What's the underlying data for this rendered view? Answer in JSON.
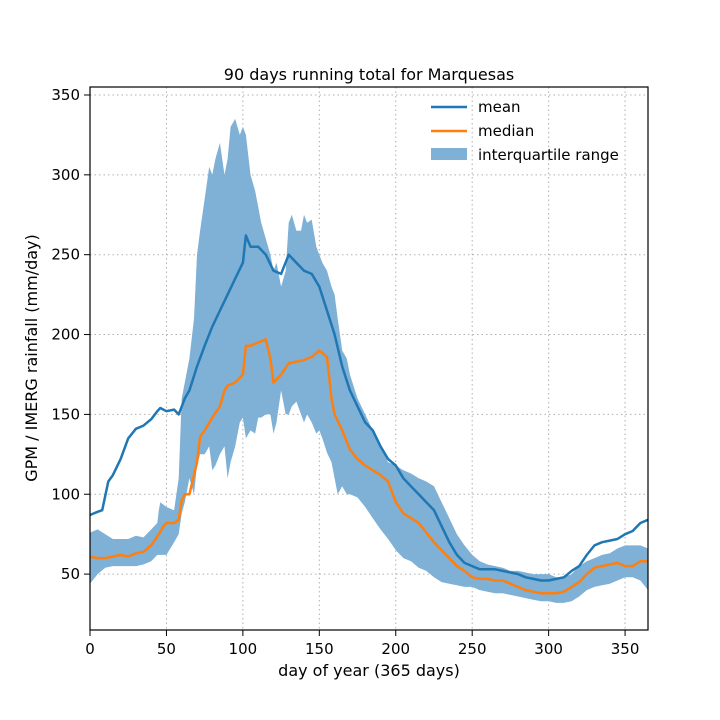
{
  "chart_data": {
    "type": "line",
    "title": "90 days running total for Marquesas",
    "xlabel": "day of year (365 days)",
    "ylabel": "GPM / IMERG rainfall (mm/day)",
    "xlim": [
      0,
      365
    ],
    "ylim": [
      15,
      355
    ],
    "xticks": [
      0,
      50,
      100,
      150,
      200,
      250,
      300,
      350
    ],
    "yticks": [
      50,
      100,
      150,
      200,
      250,
      300,
      350
    ],
    "grid": true,
    "legend_position": "top-right",
    "legend": [
      "mean",
      "median",
      "interquartile range"
    ],
    "colors": {
      "mean": "#1f77b4",
      "median": "#ff7f0e",
      "iqr": "#7fb0d6"
    },
    "series": [
      {
        "name": "mean",
        "x": [
          0,
          5,
          8,
          12,
          15,
          20,
          25,
          30,
          35,
          40,
          44,
          46,
          50,
          55,
          58,
          62,
          65,
          70,
          75,
          80,
          85,
          90,
          95,
          100,
          102,
          105,
          110,
          115,
          120,
          125,
          130,
          135,
          140,
          145,
          150,
          155,
          160,
          165,
          170,
          175,
          180,
          185,
          190,
          195,
          200,
          205,
          210,
          215,
          220,
          225,
          230,
          235,
          240,
          245,
          250,
          255,
          260,
          265,
          270,
          275,
          280,
          285,
          290,
          295,
          300,
          305,
          310,
          315,
          320,
          325,
          330,
          335,
          340,
          345,
          350,
          355,
          360,
          365
        ],
        "values": [
          87,
          89,
          90,
          108,
          112,
          122,
          135,
          141,
          143,
          147,
          152,
          154,
          152,
          153,
          150,
          160,
          165,
          180,
          193,
          205,
          215,
          225,
          235,
          245,
          262,
          255,
          255,
          250,
          240,
          238,
          250,
          245,
          240,
          238,
          230,
          215,
          200,
          180,
          165,
          155,
          145,
          140,
          130,
          122,
          118,
          110,
          105,
          100,
          95,
          90,
          80,
          70,
          62,
          57,
          55,
          53,
          53,
          53,
          52,
          51,
          50,
          48,
          47,
          46,
          46,
          47,
          48,
          52,
          55,
          62,
          68,
          70,
          71,
          72,
          75,
          77,
          82,
          84
        ]
      },
      {
        "name": "median",
        "x": [
          0,
          5,
          10,
          15,
          20,
          25,
          30,
          35,
          40,
          45,
          48,
          50,
          55,
          58,
          60,
          62,
          65,
          70,
          72,
          75,
          80,
          85,
          88,
          90,
          95,
          100,
          102,
          105,
          110,
          115,
          118,
          120,
          125,
          130,
          135,
          140,
          145,
          150,
          155,
          158,
          160,
          165,
          170,
          175,
          180,
          185,
          190,
          195,
          200,
          205,
          210,
          215,
          220,
          225,
          230,
          235,
          240,
          245,
          250,
          255,
          260,
          265,
          270,
          275,
          280,
          285,
          290,
          295,
          300,
          305,
          310,
          315,
          320,
          325,
          330,
          335,
          340,
          345,
          350,
          355,
          360,
          365
        ],
        "values": [
          61,
          60,
          60,
          61,
          62,
          61,
          63,
          64,
          68,
          75,
          80,
          82,
          82,
          84,
          96,
          100,
          100,
          120,
          136,
          140,
          148,
          155,
          165,
          168,
          170,
          175,
          193,
          193,
          195,
          197,
          185,
          170,
          175,
          182,
          183,
          184,
          186,
          190,
          186,
          160,
          150,
          140,
          128,
          122,
          118,
          115,
          112,
          108,
          95,
          88,
          85,
          82,
          76,
          70,
          65,
          60,
          55,
          52,
          48,
          47,
          47,
          46,
          46,
          44,
          42,
          40,
          39,
          38,
          38,
          38,
          39,
          42,
          45,
          50,
          54,
          55,
          56,
          57,
          55,
          55,
          58,
          58
        ]
      },
      {
        "name": "interquartile range",
        "x": [
          0,
          5,
          10,
          15,
          20,
          25,
          30,
          35,
          40,
          44,
          45,
          46,
          50,
          55,
          58,
          60,
          62,
          65,
          68,
          70,
          72,
          75,
          78,
          80,
          82,
          85,
          88,
          90,
          92,
          95,
          98,
          100,
          102,
          105,
          108,
          110,
          112,
          115,
          118,
          120,
          122,
          125,
          128,
          130,
          132,
          135,
          138,
          140,
          142,
          145,
          148,
          150,
          152,
          155,
          158,
          160,
          162,
          165,
          168,
          170,
          175,
          180,
          185,
          190,
          195,
          200,
          205,
          210,
          215,
          220,
          225,
          230,
          235,
          240,
          245,
          250,
          255,
          260,
          265,
          270,
          275,
          280,
          285,
          290,
          295,
          300,
          305,
          310,
          315,
          320,
          325,
          330,
          335,
          340,
          345,
          350,
          355,
          360,
          365
        ],
        "q25": [
          44,
          50,
          54,
          55,
          55,
          55,
          55,
          56,
          58,
          62,
          62,
          62,
          62,
          70,
          75,
          88,
          95,
          110,
          100,
          118,
          125,
          125,
          130,
          115,
          118,
          125,
          130,
          110,
          120,
          130,
          145,
          148,
          135,
          140,
          138,
          148,
          148,
          150,
          150,
          138,
          145,
          165,
          150,
          150,
          155,
          158,
          150,
          145,
          150,
          145,
          138,
          140,
          135,
          126,
          120,
          110,
          100,
          105,
          100,
          100,
          98,
          92,
          85,
          78,
          72,
          65,
          60,
          58,
          54,
          52,
          48,
          45,
          44,
          43,
          42,
          42,
          40,
          39,
          38,
          38,
          37,
          36,
          35,
          34,
          33,
          33,
          32,
          32,
          33,
          36,
          40,
          42,
          43,
          44,
          46,
          48,
          48,
          46,
          40
        ],
        "q75": [
          76,
          78,
          75,
          72,
          72,
          72,
          74,
          73,
          78,
          82,
          90,
          95,
          92,
          90,
          110,
          160,
          170,
          185,
          210,
          250,
          265,
          285,
          305,
          300,
          310,
          320,
          300,
          310,
          330,
          335,
          325,
          330,
          325,
          300,
          290,
          280,
          270,
          260,
          250,
          240,
          245,
          230,
          240,
          270,
          275,
          265,
          265,
          275,
          270,
          272,
          255,
          250,
          245,
          240,
          230,
          225,
          210,
          190,
          185,
          175,
          160,
          150,
          140,
          130,
          120,
          118,
          115,
          113,
          110,
          108,
          105,
          95,
          85,
          75,
          68,
          62,
          58,
          56,
          55,
          54,
          52,
          52,
          51,
          50,
          50,
          50,
          48,
          48,
          50,
          55,
          58,
          60,
          62,
          63,
          66,
          68,
          68,
          68,
          66
        ]
      }
    ]
  }
}
